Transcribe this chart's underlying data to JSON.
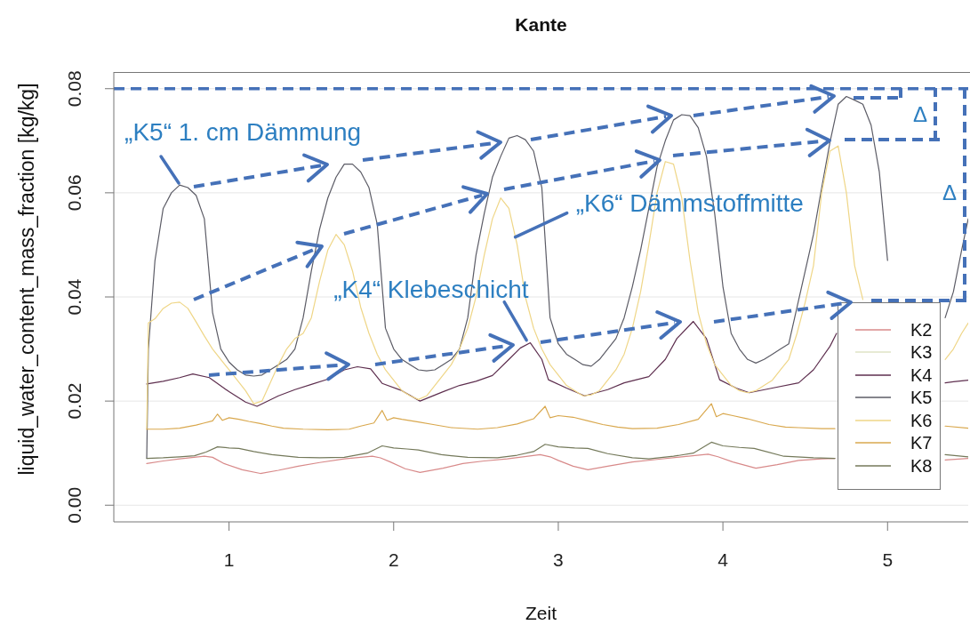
{
  "chart_data": {
    "type": "line",
    "title": "Kante",
    "xlabel": "Zeit",
    "ylabel": "liquid_water_content_mass_fraction [kg/kg]",
    "xlim": [
      0.3,
      5.49
    ],
    "ylim": [
      -0.0032,
      0.0832
    ],
    "xticks": [
      1,
      2,
      3,
      4,
      5
    ],
    "yticks": [
      {
        "value": 0,
        "label": "0.00"
      },
      0.02,
      0.04,
      0.06,
      0.08
    ],
    "grid": "y",
    "legend": "bottom right",
    "series": [
      {
        "name": "K2",
        "color": "#d88a8a",
        "x": [
          0.5,
          0.6,
          0.7,
          0.85,
          0.9,
          0.97,
          1.08,
          1.19,
          1.3,
          1.42,
          1.55,
          1.7,
          1.87,
          1.92,
          1.98,
          2.07,
          2.16,
          2.3,
          2.42,
          2.55,
          2.69,
          2.89,
          2.95,
          3.0,
          3.09,
          3.18,
          3.3,
          3.45,
          3.6,
          3.75,
          3.91,
          3.97,
          4.06,
          4.2,
          4.33,
          4.46,
          4.6,
          4.68,
          5.0,
          5.35,
          5.49
        ],
        "values": [
          0.008,
          0.0085,
          0.0089,
          0.0094,
          0.0092,
          0.008,
          0.0068,
          0.0061,
          0.0067,
          0.0075,
          0.0082,
          0.0089,
          0.0094,
          0.0091,
          0.0083,
          0.007,
          0.0063,
          0.0071,
          0.008,
          0.0085,
          0.0089,
          0.0097,
          0.0093,
          0.0086,
          0.0075,
          0.0068,
          0.0075,
          0.0083,
          0.0088,
          0.0093,
          0.0098,
          0.0093,
          0.0083,
          0.0071,
          0.0078,
          0.0086,
          0.0089,
          0.009,
          null,
          0.0087,
          0.009
        ]
      },
      {
        "name": "K3",
        "color": "#dfe3c6"
      },
      {
        "name": "K4",
        "color": "#5e2f4f",
        "x": [
          0.5,
          0.6,
          0.7,
          0.78,
          0.88,
          1.0,
          1.1,
          1.17,
          1.3,
          1.4,
          1.5,
          1.6,
          1.7,
          1.78,
          1.86,
          1.93,
          2.05,
          2.16,
          2.3,
          2.4,
          2.5,
          2.6,
          2.7,
          2.77,
          2.83,
          2.9,
          2.94,
          3.05,
          3.16,
          3.3,
          3.4,
          3.55,
          3.65,
          3.72,
          3.82,
          3.9,
          3.98,
          4.08,
          4.16,
          4.3,
          4.46,
          4.55,
          4.65,
          4.69,
          5.0,
          5.35,
          5.4,
          5.49
        ],
        "values": [
          0.0233,
          0.0238,
          0.0245,
          0.0252,
          0.0245,
          0.0218,
          0.0198,
          0.019,
          0.021,
          0.0222,
          0.0232,
          0.0242,
          0.026,
          0.0266,
          0.0262,
          0.0234,
          0.022,
          0.02,
          0.0218,
          0.023,
          0.0238,
          0.0249,
          0.028,
          0.0302,
          0.0312,
          0.028,
          0.0241,
          0.0225,
          0.021,
          0.0222,
          0.0235,
          0.0247,
          0.028,
          0.032,
          0.0353,
          0.032,
          0.0241,
          0.0225,
          0.0216,
          0.0225,
          0.0235,
          0.026,
          0.0305,
          0.033,
          null,
          0.0235,
          0.0237,
          0.024
        ]
      },
      {
        "name": "K5",
        "color": "#5c5c66",
        "x": [
          0.5,
          0.51,
          0.55,
          0.6,
          0.65,
          0.7,
          0.75,
          0.8,
          0.85,
          0.9,
          0.95,
          1.0,
          1.05,
          1.1,
          1.15,
          1.2,
          1.25,
          1.3,
          1.35,
          1.4,
          1.45,
          1.5,
          1.55,
          1.6,
          1.65,
          1.7,
          1.75,
          1.8,
          1.85,
          1.9,
          1.95,
          2.0,
          2.05,
          2.1,
          2.15,
          2.2,
          2.25,
          2.3,
          2.35,
          2.4,
          2.45,
          2.5,
          2.55,
          2.6,
          2.65,
          2.7,
          2.75,
          2.8,
          2.85,
          2.9,
          2.95,
          3.0,
          3.05,
          3.1,
          3.15,
          3.2,
          3.25,
          3.3,
          3.35,
          3.4,
          3.45,
          3.5,
          3.55,
          3.6,
          3.65,
          3.7,
          3.75,
          3.8,
          3.85,
          3.9,
          3.95,
          4.0,
          4.05,
          4.1,
          4.15,
          4.2,
          4.25,
          4.3,
          4.35,
          4.4,
          4.45,
          4.5,
          4.55,
          4.6,
          4.65,
          4.7,
          4.75,
          4.8,
          4.85,
          4.9,
          4.95,
          5.0,
          5.1,
          5.35,
          5.4,
          5.45,
          5.49
        ],
        "values": [
          0.009,
          0.03,
          0.047,
          0.057,
          0.06,
          0.0615,
          0.061,
          0.0595,
          0.055,
          0.037,
          0.03,
          0.0275,
          0.026,
          0.025,
          0.0248,
          0.025,
          0.026,
          0.027,
          0.028,
          0.03,
          0.036,
          0.045,
          0.053,
          0.059,
          0.063,
          0.0655,
          0.0655,
          0.064,
          0.061,
          0.054,
          0.034,
          0.03,
          0.028,
          0.027,
          0.026,
          0.0258,
          0.026,
          0.027,
          0.028,
          0.03,
          0.036,
          0.048,
          0.056,
          0.063,
          0.067,
          0.0705,
          0.071,
          0.0702,
          0.068,
          0.061,
          0.036,
          0.031,
          0.029,
          0.028,
          0.027,
          0.0267,
          0.028,
          0.03,
          0.032,
          0.036,
          0.042,
          0.049,
          0.057,
          0.065,
          0.07,
          0.074,
          0.075,
          0.0748,
          0.0725,
          0.067,
          0.056,
          0.042,
          0.033,
          0.03,
          0.028,
          0.0273,
          0.028,
          0.029,
          0.03,
          0.031,
          0.038,
          0.045,
          0.052,
          0.061,
          0.0697,
          0.077,
          0.0785,
          0.0778,
          0.077,
          0.073,
          0.064,
          0.047,
          null,
          0.036,
          0.041,
          0.049,
          0.055
        ]
      },
      {
        "name": "K6",
        "color": "#efd687",
        "x": [
          0.5,
          0.51,
          0.55,
          0.6,
          0.65,
          0.7,
          0.75,
          0.8,
          0.85,
          0.9,
          0.95,
          1.0,
          1.05,
          1.1,
          1.15,
          1.2,
          1.25,
          1.3,
          1.35,
          1.4,
          1.45,
          1.5,
          1.55,
          1.6,
          1.65,
          1.7,
          1.75,
          1.8,
          1.85,
          1.9,
          1.95,
          2.0,
          2.05,
          2.1,
          2.15,
          2.2,
          2.25,
          2.3,
          2.35,
          2.4,
          2.45,
          2.5,
          2.55,
          2.6,
          2.65,
          2.7,
          2.75,
          2.8,
          2.85,
          2.9,
          2.95,
          3.0,
          3.05,
          3.1,
          3.15,
          3.2,
          3.25,
          3.3,
          3.35,
          3.4,
          3.45,
          3.5,
          3.55,
          3.6,
          3.65,
          3.7,
          3.75,
          3.8,
          3.85,
          3.9,
          3.95,
          4.0,
          4.05,
          4.1,
          4.15,
          4.2,
          4.25,
          4.3,
          4.35,
          4.4,
          4.45,
          4.5,
          4.55,
          4.6,
          4.65,
          4.7,
          4.75,
          4.8,
          4.85,
          5.1,
          5.35,
          5.4,
          5.45,
          5.49
        ],
        "values": [
          0.0146,
          0.035,
          0.0358,
          0.0378,
          0.0388,
          0.039,
          0.0378,
          0.0352,
          0.0325,
          0.03,
          0.028,
          0.026,
          0.024,
          0.022,
          0.0195,
          0.02,
          0.0235,
          0.027,
          0.03,
          0.032,
          0.033,
          0.036,
          0.043,
          0.049,
          0.052,
          0.05,
          0.045,
          0.038,
          0.033,
          0.029,
          0.026,
          0.024,
          0.022,
          0.021,
          0.0203,
          0.021,
          0.023,
          0.025,
          0.027,
          0.03,
          0.034,
          0.04,
          0.048,
          0.055,
          0.059,
          0.057,
          0.05,
          0.04,
          0.034,
          0.03,
          0.027,
          0.025,
          0.023,
          0.022,
          0.021,
          0.0212,
          0.022,
          0.024,
          0.026,
          0.029,
          0.034,
          0.041,
          0.05,
          0.06,
          0.066,
          0.0655,
          0.059,
          0.047,
          0.037,
          0.031,
          0.027,
          0.025,
          0.023,
          0.022,
          0.0216,
          0.022,
          0.023,
          0.024,
          0.026,
          0.028,
          0.033,
          0.039,
          0.046,
          0.06,
          0.068,
          0.069,
          0.06,
          0.046,
          0.0395,
          null,
          0.028,
          0.03,
          0.033,
          0.035
        ]
      },
      {
        "name": "K7",
        "color": "#d9a84e",
        "x": [
          0.5,
          0.6,
          0.7,
          0.8,
          0.85,
          0.9,
          0.93,
          0.96,
          1.0,
          1.06,
          1.12,
          1.19,
          1.26,
          1.33,
          1.45,
          1.6,
          1.73,
          1.8,
          1.88,
          1.93,
          1.96,
          2.0,
          2.05,
          2.15,
          2.24,
          2.35,
          2.51,
          2.63,
          2.75,
          2.85,
          2.92,
          2.95,
          3.0,
          3.09,
          3.18,
          3.27,
          3.36,
          3.45,
          3.6,
          3.73,
          3.85,
          3.93,
          3.96,
          4.0,
          4.06,
          4.15,
          4.28,
          4.38,
          4.46,
          4.6,
          4.68,
          5.0,
          5.35,
          5.49
        ],
        "values": [
          0.0146,
          0.0146,
          0.0148,
          0.0154,
          0.0158,
          0.0162,
          0.0175,
          0.0163,
          0.0168,
          0.0165,
          0.0161,
          0.0157,
          0.0152,
          0.0148,
          0.0146,
          0.0145,
          0.0146,
          0.0152,
          0.0158,
          0.0182,
          0.0163,
          0.0168,
          0.0165,
          0.016,
          0.0155,
          0.0149,
          0.0146,
          0.0149,
          0.0156,
          0.0166,
          0.019,
          0.0168,
          0.0172,
          0.0169,
          0.0162,
          0.0155,
          0.015,
          0.0147,
          0.0148,
          0.0155,
          0.0165,
          0.0195,
          0.017,
          0.0176,
          0.0172,
          0.0166,
          0.0155,
          0.015,
          0.0149,
          0.0147,
          0.0147,
          null,
          0.0152,
          0.0148
        ]
      },
      {
        "name": "K8",
        "color": "#74795a",
        "x": [
          0.5,
          0.6,
          0.7,
          0.79,
          0.86,
          0.93,
          1.0,
          1.06,
          1.15,
          1.26,
          1.42,
          1.55,
          1.7,
          1.84,
          1.93,
          2.0,
          2.08,
          2.15,
          2.29,
          2.45,
          2.63,
          2.75,
          2.85,
          2.92,
          3.0,
          3.1,
          3.18,
          3.3,
          3.45,
          3.55,
          3.7,
          3.82,
          3.93,
          4.0,
          4.1,
          4.19,
          4.37,
          4.55,
          4.68,
          5.0,
          5.35,
          5.49
        ],
        "values": [
          0.009,
          0.0091,
          0.0093,
          0.0095,
          0.0102,
          0.0112,
          0.011,
          0.0109,
          0.0103,
          0.0097,
          0.0092,
          0.0091,
          0.0092,
          0.01,
          0.0114,
          0.011,
          0.0108,
          0.0106,
          0.0097,
          0.0092,
          0.0091,
          0.0096,
          0.0103,
          0.0117,
          0.0112,
          0.011,
          0.0109,
          0.0099,
          0.0091,
          0.0089,
          0.0094,
          0.01,
          0.0121,
          0.0114,
          0.0111,
          0.0109,
          0.0094,
          0.0091,
          0.009,
          null,
          0.0097,
          0.0093
        ]
      }
    ],
    "ref_lines": [
      {
        "axis": "y",
        "value": 0.08,
        "color": "#4571b8",
        "line_style": "dashed"
      }
    ],
    "annotations": [
      {
        "text": "„K5“ 1. cm Dämmung",
        "x": 0.7,
        "y": 0.061
      },
      {
        "text": "„K6“ Dämmstoffmitte",
        "x": 2.75,
        "y": 0.0515
      },
      {
        "text": "„K4“ Klebeschicht",
        "x": 2.85,
        "y": 0.031
      },
      {
        "text": "Δ",
        "x": 4.75,
        "y": 0.0785
      },
      "Δ"
    ]
  }
}
